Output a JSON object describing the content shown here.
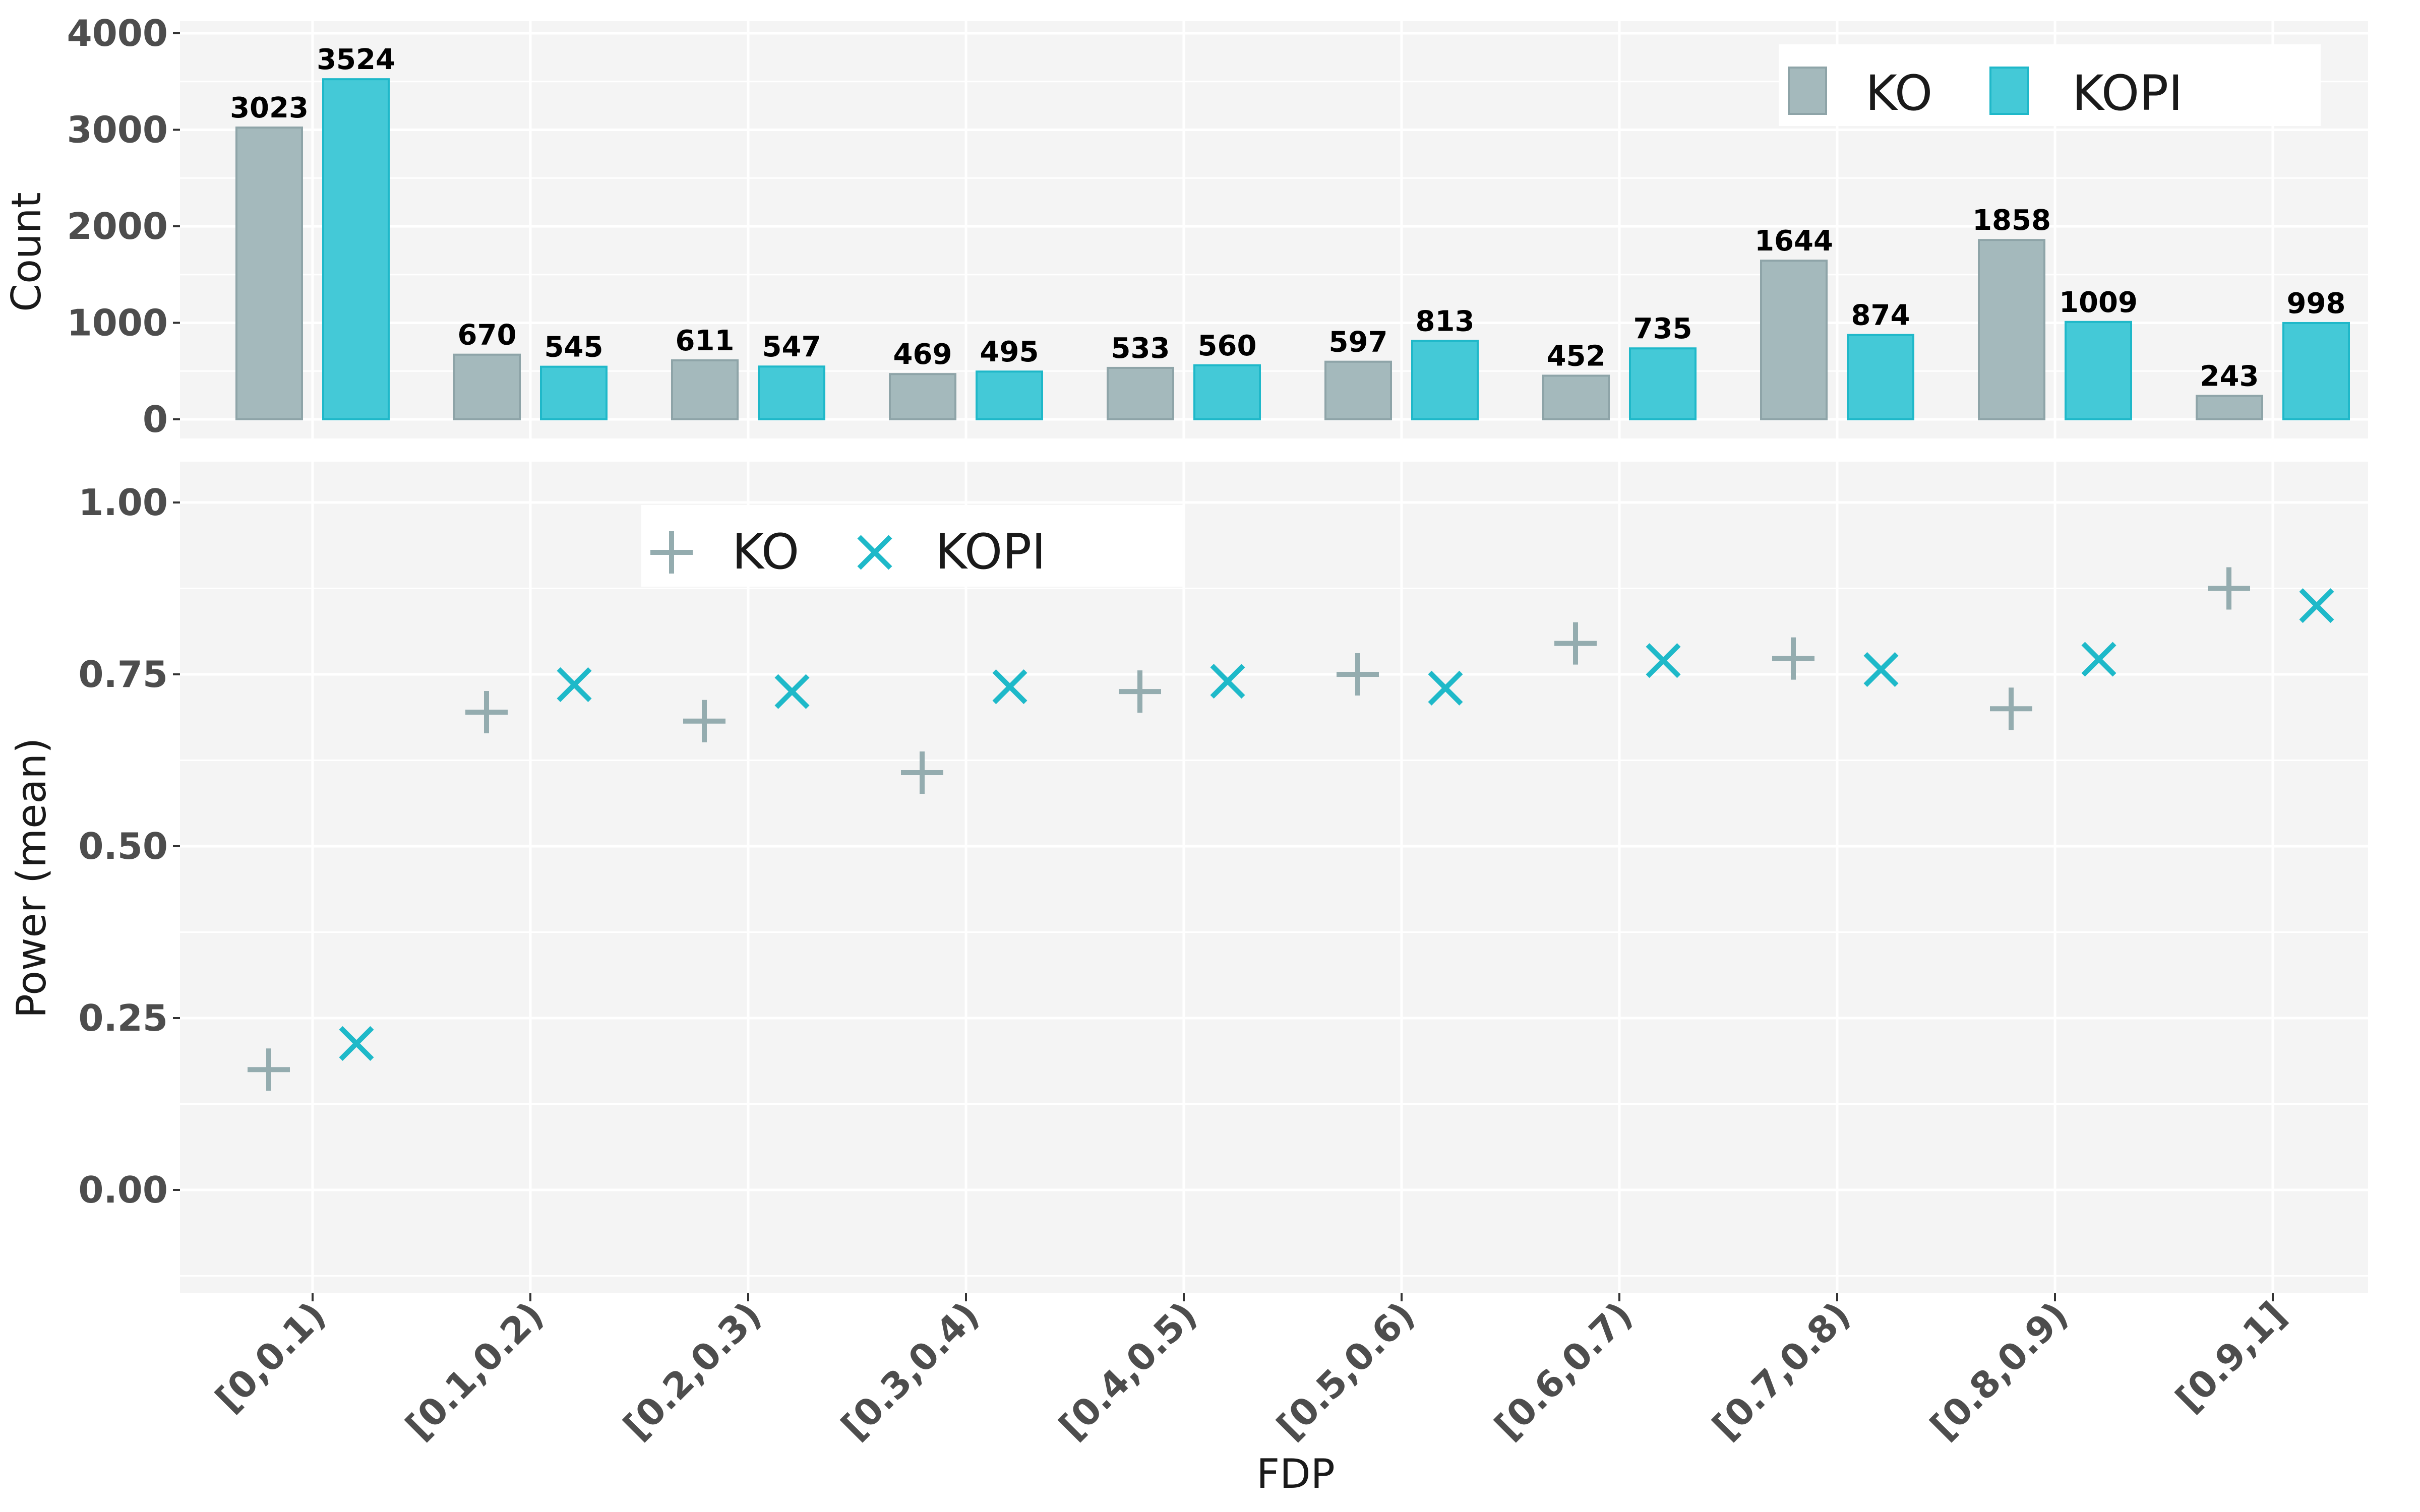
{
  "colors": {
    "ko": "#a4b9bc",
    "ko_stroke": "#8ea4a8",
    "kopi": "#44c9d7",
    "kopi_stroke": "#1fb8c9",
    "ko_marker": "#94acaf",
    "kopi_marker": "#1eb9c9",
    "panel": "#f4f4f4",
    "grid": "#ffffff"
  },
  "chart_data": [
    {
      "type": "bar",
      "categories": [
        "[0,0.1)",
        "[0.1,0.2)",
        "[0.2,0.3)",
        "[0.3,0.4)",
        "[0.4,0.5)",
        "[0.5,0.6)",
        "[0.6,0.7)",
        "[0.7,0.8)",
        "[0.8,0.9)",
        "[0.9,1]"
      ],
      "series": [
        {
          "name": "KO",
          "values": [
            3023,
            670,
            611,
            469,
            533,
            597,
            452,
            1644,
            1858,
            243
          ]
        },
        {
          "name": "KOPI",
          "values": [
            3524,
            545,
            547,
            495,
            560,
            813,
            735,
            874,
            1009,
            998
          ]
        }
      ],
      "ylabel": "Count",
      "ylim": [
        -200,
        4000
      ],
      "yticks": [
        0,
        1000,
        2000,
        3000,
        4000
      ],
      "grid": true,
      "legend_position": "top-right",
      "data_labels": true
    },
    {
      "type": "scatter",
      "categories": [
        "[0,0.1)",
        "[0.1,0.2)",
        "[0.2,0.3)",
        "[0.3,0.4)",
        "[0.4,0.5)",
        "[0.5,0.6)",
        "[0.6,0.7)",
        "[0.7,0.8)",
        "[0.8,0.9)",
        "[0.9,1]"
      ],
      "series": [
        {
          "name": "KO",
          "marker": "plus",
          "values": [
            0.175,
            0.695,
            0.682,
            0.607,
            0.725,
            0.75,
            0.795,
            0.773,
            0.7,
            0.875
          ]
        },
        {
          "name": "KOPI",
          "marker": "x",
          "values": [
            0.213,
            0.735,
            0.725,
            0.732,
            0.74,
            0.73,
            0.77,
            0.757,
            0.772,
            0.85
          ]
        }
      ],
      "xlabel": "FDP",
      "ylabel": "Power (mean)",
      "ylim": [
        -0.15,
        1.05
      ],
      "yticks": [
        "0.00",
        "0.25",
        "0.50",
        "0.75",
        "1.00"
      ],
      "grid": true,
      "legend_position": "top-left"
    }
  ]
}
